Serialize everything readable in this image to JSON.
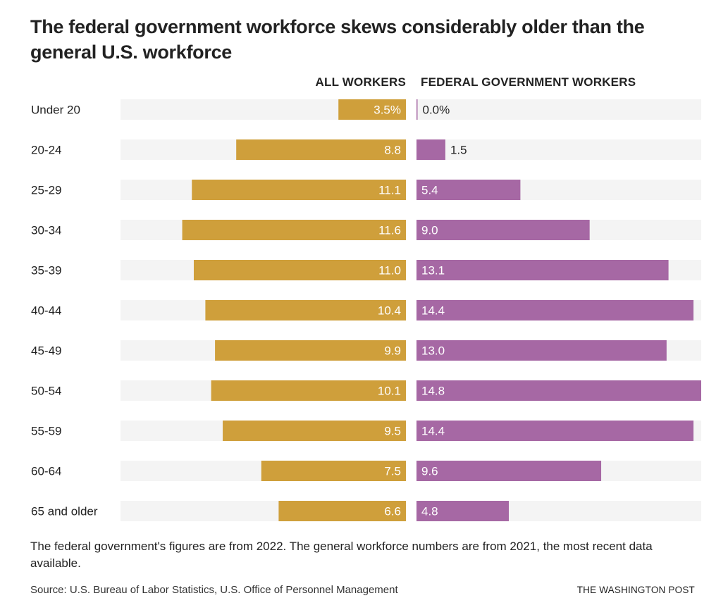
{
  "chart_data": {
    "type": "bar",
    "orientation": "horizontal-diverging",
    "title": "The federal government workforce skews considerably older than the general U.S. workforce",
    "categories": [
      "Under 20",
      "20-24",
      "25-29",
      "30-34",
      "35-39",
      "40-44",
      "45-49",
      "50-54",
      "55-59",
      "60-64",
      "65 and older"
    ],
    "series": [
      {
        "name": "ALL WORKERS",
        "color": "#cf9f3b",
        "values": [
          3.5,
          8.8,
          11.1,
          11.6,
          11.0,
          10.4,
          9.9,
          10.1,
          9.5,
          7.5,
          6.6
        ],
        "labels": [
          "3.5%",
          "8.8",
          "11.1",
          "11.6",
          "11.0",
          "10.4",
          "9.9",
          "10.1",
          "9.5",
          "7.5",
          "6.6"
        ]
      },
      {
        "name": "FEDERAL GOVERNMENT WORKERS",
        "color": "#a668a4",
        "values": [
          0.0,
          1.5,
          5.4,
          9.0,
          13.1,
          14.4,
          13.0,
          14.8,
          14.4,
          9.6,
          4.8
        ],
        "labels": [
          "0.0%",
          "1.5",
          "5.4",
          "9.0",
          "13.1",
          "14.4",
          "13.0",
          "14.8",
          "14.4",
          "9.6",
          "4.8"
        ]
      }
    ],
    "xlim": [
      0,
      14.8
    ],
    "unit": "percent",
    "track_color": "#f4f4f4",
    "grid": false,
    "legend": "column-headers-top"
  },
  "note": "The federal government's figures are from 2022. The general workforce numbers are from 2021, the most recent data available.",
  "source": "Source: U.S. Bureau of Labor Statistics, U.S. Office of Personnel Management",
  "brand": "THE WASHINGTON POST"
}
